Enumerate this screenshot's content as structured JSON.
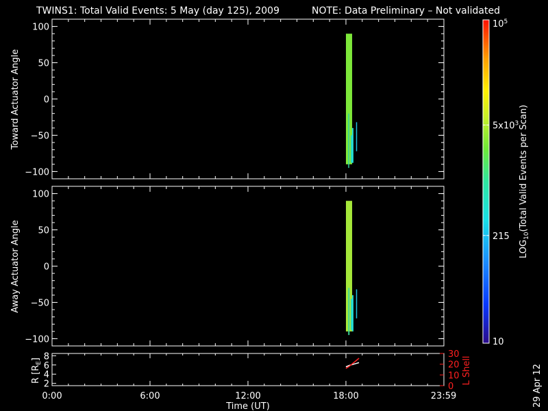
{
  "header": {
    "title": "TWINS1: Total Valid Events:  5 May (day 125), 2009",
    "note": "NOTE: Data Preliminary – Not validated",
    "note_color": "#ff2020"
  },
  "footer": {
    "date_stamp": "29 Apr 12"
  },
  "colorbar": {
    "label": "LOG10(Total Valid Events per Scan)",
    "label_base": "LOG",
    "label_sub": "10",
    "label_rest": "(Total Valid Events per Scan)",
    "ticks": [
      {
        "text": "10",
        "value": 10
      },
      {
        "text": "215",
        "value": 215
      },
      {
        "text": "5x10",
        "sup": "3",
        "value": 5000
      },
      {
        "text": "10",
        "sup": "5",
        "value": 100000
      }
    ],
    "range": [
      10,
      100000
    ],
    "scale": "log"
  },
  "chart_data": [
    {
      "type": "heatmap",
      "ylabel": "Toward Actuator Angle",
      "xlim": [
        0,
        24
      ],
      "ylim": [
        -110,
        110
      ],
      "yticks": [
        "100",
        "50",
        "0",
        "−50",
        "−100"
      ],
      "ytick_values": [
        100,
        50,
        0,
        -50,
        -100
      ],
      "strips": [
        {
          "t": [
            18.0,
            18.38
          ],
          "y": [
            -90,
            90
          ],
          "color": "#7ee83a"
        },
        {
          "t": [
            18.14,
            18.2
          ],
          "y": [
            -95,
            -20
          ],
          "color": "#2fd3a0"
        },
        {
          "t": [
            18.3,
            18.4
          ],
          "y": [
            -88,
            -50
          ],
          "color": "#28d8c8"
        },
        {
          "t": [
            18.38,
            18.46
          ],
          "y": [
            -88,
            -40
          ],
          "color": "#22e0d8"
        },
        {
          "t": [
            18.62,
            18.66
          ],
          "y": [
            -72,
            -32
          ],
          "color": "#1ec0e0"
        }
      ]
    },
    {
      "type": "heatmap",
      "ylabel": "Away Actuator Angle",
      "xlim": [
        0,
        24
      ],
      "ylim": [
        -110,
        110
      ],
      "yticks": [
        "100",
        "50",
        "0",
        "−50",
        "−100"
      ],
      "ytick_values": [
        100,
        50,
        0,
        -50,
        -100
      ],
      "strips": [
        {
          "t": [
            18.0,
            18.38
          ],
          "y": [
            -90,
            90
          ],
          "color": "#a6e83a"
        },
        {
          "t": [
            18.14,
            18.22
          ],
          "y": [
            -95,
            -30
          ],
          "color": "#3ad89a"
        },
        {
          "t": [
            18.3,
            18.4
          ],
          "y": [
            -88,
            -45
          ],
          "color": "#28d8c8"
        },
        {
          "t": [
            18.38,
            18.46
          ],
          "y": [
            -90,
            -40
          ],
          "color": "#22e0d8"
        },
        {
          "t": [
            18.62,
            18.66
          ],
          "y": [
            -72,
            -32
          ],
          "color": "#1ec0e0"
        }
      ]
    },
    {
      "type": "line",
      "ylabel_left": "R [RE]",
      "ylabel_left_base": "R [R",
      "ylabel_left_sub": "E",
      "ylabel_left_end": "]",
      "ylabel_right": "L Shell",
      "xlabel": "Time (UT)",
      "xticks": [
        "0:00",
        "6:00",
        "12:00",
        "18:00",
        "23:59"
      ],
      "xtick_values": [
        0,
        6,
        12,
        18,
        23.98
      ],
      "left_ylim": [
        1.5,
        8.5
      ],
      "left_yticks": [
        "8",
        "6",
        "4",
        "2"
      ],
      "left_ytick_values": [
        8,
        6,
        4,
        2
      ],
      "right_ylim": [
        0,
        30
      ],
      "right_yticks": [
        "30",
        "20",
        "10",
        "0"
      ],
      "right_ytick_values": [
        30,
        20,
        10,
        0
      ],
      "right_color": "#ff2020",
      "series": [
        {
          "axis": "left",
          "color": "#ffffff",
          "x": [
            18.0,
            18.2,
            18.4,
            18.6,
            18.8
          ],
          "y": [
            5.6,
            5.9,
            6.1,
            6.3,
            6.5
          ]
        },
        {
          "axis": "right",
          "color": "#ff2020",
          "x": [
            18.0,
            18.2,
            18.4,
            18.6,
            18.8
          ],
          "y": [
            16,
            18,
            20.5,
            23,
            25.5
          ]
        }
      ]
    }
  ]
}
